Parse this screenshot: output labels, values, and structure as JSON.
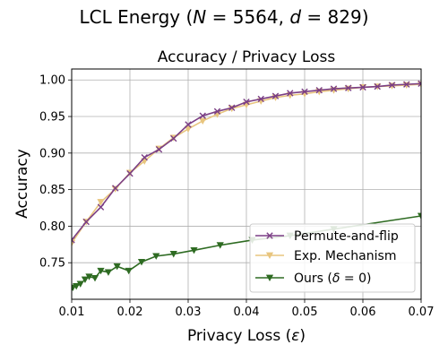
{
  "figure_title": "LCL Energy (N = 5564, d = 829)",
  "figure_title_parts": {
    "prefix": "LCL Energy (",
    "n_symbol": "N",
    "n_value": " = 5564, ",
    "d_symbol": "d",
    "d_value": " = 829)"
  },
  "chart_data": {
    "type": "line",
    "title": "Accuracy / Privacy Loss",
    "xlabel": "Privacy Loss (ε)",
    "xlabel_parts": {
      "prefix": "Privacy Loss (",
      "symbol": "ε",
      "suffix": ")"
    },
    "ylabel": "Accuracy",
    "xlim": [
      0.01,
      0.07
    ],
    "ylim": [
      0.7,
      1.015
    ],
    "xticks": [
      0.01,
      0.02,
      0.03,
      0.04,
      0.05,
      0.06,
      0.07
    ],
    "xtick_labels": [
      "0.01",
      "0.02",
      "0.03",
      "0.04",
      "0.05",
      "0.06",
      "0.07"
    ],
    "yticks": [
      0.75,
      0.8,
      0.85,
      0.9,
      0.95,
      1.0
    ],
    "ytick_labels": [
      "0.75",
      "0.80",
      "0.85",
      "0.90",
      "0.95",
      "1.00"
    ],
    "grid": true,
    "legend_position": "lower-right",
    "series": [
      {
        "name": "Permute-and-flip",
        "color": "#7b3f85",
        "marker": "x",
        "x": [
          0.01,
          0.0125,
          0.015,
          0.0175,
          0.02,
          0.0225,
          0.025,
          0.0275,
          0.03,
          0.0325,
          0.035,
          0.0375,
          0.04,
          0.0425,
          0.045,
          0.0475,
          0.05,
          0.0525,
          0.055,
          0.0575,
          0.06,
          0.0625,
          0.065,
          0.0675,
          0.07
        ],
        "values": [
          0.781,
          0.806,
          0.826,
          0.852,
          0.872,
          0.894,
          0.905,
          0.92,
          0.939,
          0.951,
          0.957,
          0.962,
          0.97,
          0.974,
          0.978,
          0.982,
          0.984,
          0.986,
          0.988,
          0.989,
          0.99,
          0.991,
          0.993,
          0.994,
          0.995
        ]
      },
      {
        "name": "Exp. Mechanism",
        "color": "#e8c57e",
        "marker": "triangle-down",
        "x": [
          0.01,
          0.0125,
          0.015,
          0.0175,
          0.02,
          0.0225,
          0.025,
          0.0275,
          0.03,
          0.0325,
          0.035,
          0.0375,
          0.04,
          0.0425,
          0.045,
          0.0475,
          0.05,
          0.0525,
          0.055,
          0.0575,
          0.06,
          0.0625,
          0.065,
          0.0675,
          0.07
        ],
        "values": [
          0.777,
          0.806,
          0.833,
          0.851,
          0.873,
          0.889,
          0.906,
          0.921,
          0.933,
          0.944,
          0.953,
          0.961,
          0.966,
          0.971,
          0.976,
          0.979,
          0.981,
          0.984,
          0.986,
          0.988,
          0.99,
          0.991,
          0.992,
          0.993,
          0.994
        ]
      },
      {
        "name": "Ours (δ = 0)",
        "name_parts": {
          "prefix": "Ours (",
          "symbol": "δ",
          "suffix": " = 0)"
        },
        "color": "#2e6b22",
        "marker": "triangle-down",
        "x": [
          0.0102,
          0.0108,
          0.0115,
          0.0123,
          0.013,
          0.014,
          0.015,
          0.0163,
          0.0178,
          0.0198,
          0.022,
          0.0245,
          0.0275,
          0.031,
          0.0355,
          0.041,
          0.0475,
          0.055,
          0.07
        ],
        "values": [
          0.716,
          0.718,
          0.721,
          0.727,
          0.731,
          0.729,
          0.739,
          0.737,
          0.745,
          0.739,
          0.751,
          0.759,
          0.762,
          0.767,
          0.774,
          0.781,
          0.787,
          0.796,
          0.814
        ]
      }
    ]
  }
}
